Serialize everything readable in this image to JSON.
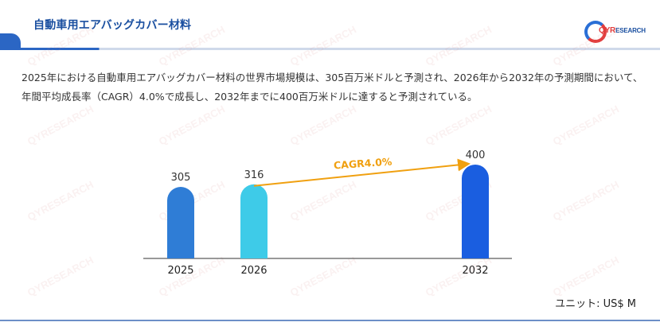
{
  "header": {
    "title": "自動車用エアバッグカバー材料"
  },
  "logo": {
    "brand_main": "QYR",
    "brand_sub": "ESEARCH",
    "watermark": "QYRESEARCH"
  },
  "summary": {
    "text": "2025年における自動車用エアバッグカバー材料の世界市場規模は、305百万米ドルと予測され、2026年から2032年の予測期間において、年間平均成長率（CAGR）4.0%で成長し、2032年までに400百万米ドルに達すると予測されている。"
  },
  "unit_label": "ユニット: US$ M",
  "chart_data": {
    "type": "bar",
    "categories": [
      "2025",
      "2026",
      "2032"
    ],
    "values": [
      305,
      316,
      400
    ],
    "bar_colors": [
      "#2f7dd6",
      "#3ecbe8",
      "#1a5ee0"
    ],
    "annotation": {
      "text": "CAGR4.0%",
      "from": "2026",
      "to": "2032",
      "color": "#f0a010"
    }
  }
}
